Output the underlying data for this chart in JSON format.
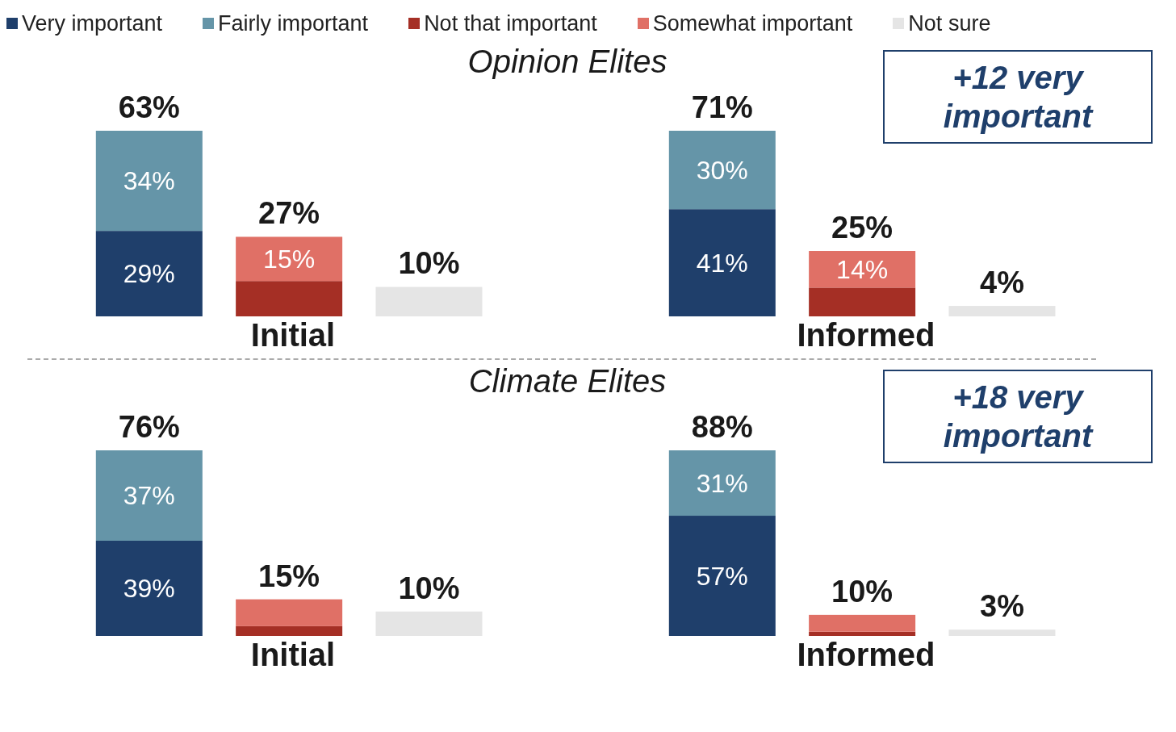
{
  "chart_data": [
    {
      "type": "bar",
      "stacked": true,
      "title": "Opinion Elites",
      "xlabel": "Initial",
      "legend": "top",
      "categories": [
        null,
        null,
        null
      ],
      "series": [
        {
          "name": "Very important",
          "color": "#1f3f6b",
          "values": [
            29,
            null,
            null
          ],
          "value_labels": [
            "29%",
            null,
            null
          ]
        },
        {
          "name": "Fairly important",
          "color": "#6595a8",
          "values": [
            34,
            null,
            null
          ],
          "value_labels": [
            "34%",
            null,
            null
          ]
        },
        {
          "name": "Not that important",
          "color": "#a52f25",
          "values": [
            null,
            12,
            null
          ],
          "value_labels": [
            null,
            null,
            null
          ]
        },
        {
          "name": "Somewhat important",
          "color": "#e07066",
          "values": [
            null,
            15,
            null
          ],
          "value_labels": [
            null,
            "15%",
            null
          ]
        },
        {
          "name": "Not sure",
          "color": "#e5e5e5",
          "values": [
            null,
            null,
            10
          ],
          "value_labels": [
            null,
            null,
            null
          ]
        }
      ],
      "totals": [
        "63%",
        "27%",
        "10%"
      ]
    },
    {
      "type": "bar",
      "stacked": true,
      "xlabel": "Informed",
      "categories": [
        null,
        null,
        null
      ],
      "annotations": [
        "+12 very important"
      ],
      "series": [
        {
          "color": "#1f3f6b",
          "values": [
            41,
            null,
            null
          ],
          "value_labels": [
            "41%",
            null,
            null
          ]
        },
        {
          "color": "#6595a8",
          "values": [
            30,
            null,
            null
          ],
          "value_labels": [
            "30%",
            null,
            null
          ]
        },
        {
          "color": "#a52f25",
          "values": [
            null,
            11,
            null
          ],
          "value_labels": [
            null,
            null,
            null
          ]
        },
        {
          "color": "#e07066",
          "values": [
            null,
            14,
            null
          ],
          "value_labels": [
            null,
            "14%",
            null
          ]
        },
        {
          "color": "#e5e5e5",
          "values": [
            null,
            null,
            4
          ],
          "value_labels": [
            null,
            null,
            null
          ]
        }
      ],
      "totals": [
        "71%",
        "25%",
        "4%"
      ]
    },
    {
      "type": "bar",
      "stacked": true,
      "title": "Climate Elites",
      "xlabel": "Initial",
      "categories": [
        null,
        null,
        null
      ],
      "series": [
        {
          "color": "#1f3f6b",
          "values": [
            39,
            null,
            null
          ],
          "value_labels": [
            "39%",
            null,
            null
          ]
        },
        {
          "color": "#6595a8",
          "values": [
            37,
            null,
            null
          ],
          "value_labels": [
            "37%",
            null,
            null
          ]
        },
        {
          "color": "#a52f25",
          "values": [
            null,
            4,
            null
          ],
          "value_labels": [
            null,
            null,
            null
          ]
        },
        {
          "color": "#e07066",
          "values": [
            null,
            11,
            null
          ],
          "value_labels": [
            null,
            null,
            null
          ]
        },
        {
          "color": "#e5e5e5",
          "values": [
            null,
            null,
            10
          ],
          "value_labels": [
            null,
            null,
            null
          ]
        }
      ],
      "totals": [
        "76%",
        "15%",
        "10%"
      ]
    },
    {
      "type": "bar",
      "stacked": true,
      "xlabel": "Informed",
      "categories": [
        null,
        null,
        null
      ],
      "annotations": [
        "+18 very important"
      ],
      "series": [
        {
          "color": "#1f3f6b",
          "values": [
            57,
            null,
            null
          ],
          "value_labels": [
            "57%",
            null,
            null
          ]
        },
        {
          "color": "#6595a8",
          "values": [
            31,
            null,
            null
          ],
          "value_labels": [
            "31%",
            null,
            null
          ]
        },
        {
          "color": "#a52f25",
          "values": [
            null,
            2,
            null
          ],
          "value_labels": [
            null,
            null,
            null
          ]
        },
        {
          "color": "#e07066",
          "values": [
            null,
            8,
            null
          ],
          "value_labels": [
            null,
            null,
            null
          ]
        },
        {
          "color": "#e5e5e5",
          "values": [
            null,
            null,
            3
          ],
          "value_labels": [
            null,
            null,
            null
          ]
        }
      ],
      "totals": [
        "88%",
        "10%",
        "3%"
      ]
    }
  ]
}
